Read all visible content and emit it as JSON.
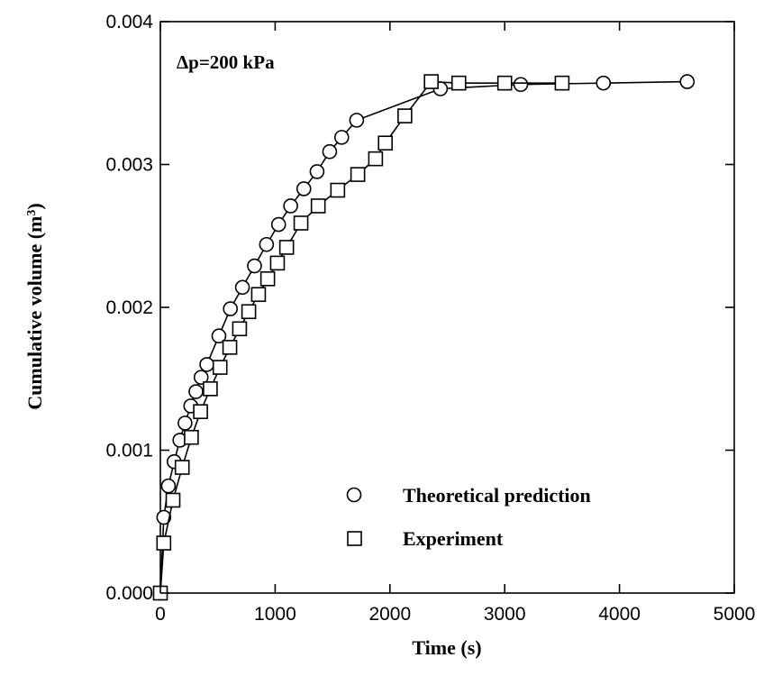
{
  "chart_data": {
    "type": "line",
    "xlabel": "Time (s)",
    "ylabel": "Cumulative volume (m",
    "ylabel_sup": "3",
    "ylabel_end": ")",
    "xlim": [
      0,
      5000
    ],
    "ylim": [
      0,
      0.004
    ],
    "xticks": [
      0,
      1000,
      2000,
      3000,
      4000,
      5000
    ],
    "xtick_labels": [
      "0",
      "1000",
      "2000",
      "3000",
      "4000",
      "5000"
    ],
    "yticks": [
      0,
      0.001,
      0.002,
      0.003,
      0.004
    ],
    "ytick_labels": [
      "0.000",
      "0.001",
      "0.002",
      "0.003",
      "0.004"
    ],
    "annotation": "Δp=200 kPa",
    "grid": false,
    "legend_position": "lower-right",
    "series": [
      {
        "name": "Theoretical prediction",
        "marker": "circle",
        "x": [
          0,
          30,
          70,
          120,
          170,
          215,
          265,
          310,
          355,
          405,
          510,
          610,
          715,
          820,
          925,
          1030,
          1135,
          1250,
          1365,
          1475,
          1580,
          1710,
          2440,
          3140,
          3860,
          4590
        ],
        "y": [
          0,
          0.00053,
          0.00075,
          0.00092,
          0.00107,
          0.00119,
          0.00131,
          0.00141,
          0.00151,
          0.0016,
          0.0018,
          0.00199,
          0.00214,
          0.00229,
          0.00244,
          0.00258,
          0.00271,
          0.00283,
          0.00295,
          0.00309,
          0.00319,
          0.00331,
          0.00353,
          0.00356,
          0.00357,
          0.00358
        ]
      },
      {
        "name": "Experiment",
        "marker": "square",
        "x": [
          0,
          30,
          110,
          190,
          270,
          350,
          435,
          520,
          605,
          690,
          770,
          855,
          935,
          1020,
          1100,
          1225,
          1375,
          1545,
          1720,
          1875,
          1960,
          2130,
          2360,
          2600,
          3000,
          3500
        ],
        "y": [
          0,
          0.00035,
          0.00065,
          0.00088,
          0.00109,
          0.00127,
          0.00143,
          0.00158,
          0.00172,
          0.00185,
          0.00197,
          0.00209,
          0.0022,
          0.00231,
          0.00242,
          0.00259,
          0.00271,
          0.00282,
          0.00293,
          0.00304,
          0.00315,
          0.00334,
          0.00358,
          0.00357,
          0.00357,
          0.00357
        ]
      }
    ]
  }
}
